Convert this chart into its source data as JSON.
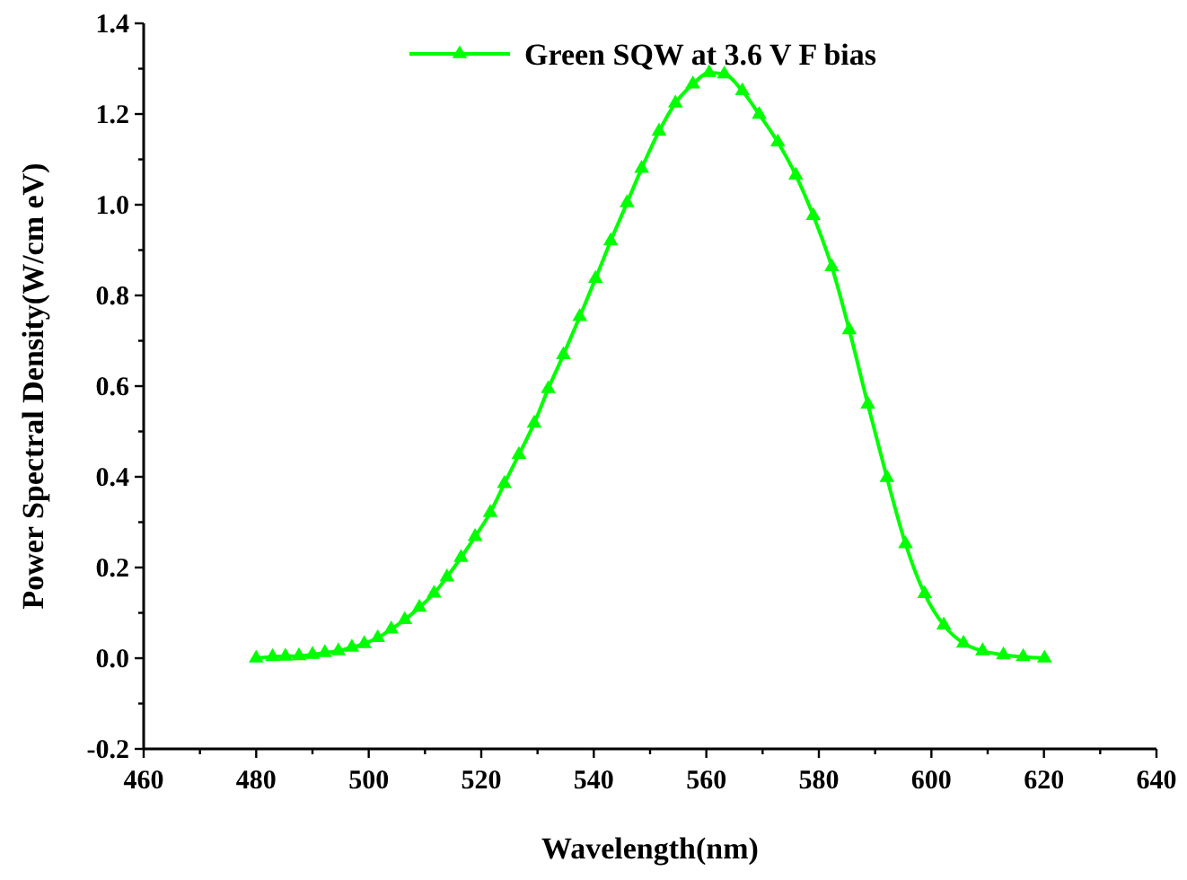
{
  "chart_data": {
    "type": "line",
    "xlabel": "Wavelength(nm)",
    "ylabel": "Power Spectral Density(W/cm eV)",
    "xlim": [
      460,
      640
    ],
    "ylim": [
      -0.2,
      1.4
    ],
    "xticks": [
      460,
      {
        "value": 470,
        "label": null
      },
      480,
      {
        "value": 490,
        "label": null
      },
      500,
      {
        "value": 510,
        "label": null
      },
      520,
      {
        "value": 530,
        "label": null
      },
      540,
      {
        "value": 550,
        "label": null
      },
      560,
      {
        "value": 570,
        "label": null
      },
      580,
      {
        "value": 590,
        "label": null
      },
      600,
      {
        "value": 610,
        "label": null
      },
      620,
      {
        "value": 630,
        "label": null
      },
      640
    ],
    "yticks": [
      {
        "value": -0.2,
        "label": "-0.2"
      },
      {
        "value": -0.1,
        "label": null
      },
      {
        "value": 0,
        "label": "0.0"
      },
      {
        "value": 0.1,
        "label": null
      },
      {
        "value": 0.2,
        "label": "0.2"
      },
      {
        "value": 0.3,
        "label": null
      },
      {
        "value": 0.4,
        "label": "0.4"
      },
      {
        "value": 0.5,
        "label": null
      },
      {
        "value": 0.6,
        "label": "0.6"
      },
      {
        "value": 0.7,
        "label": null
      },
      {
        "value": 0.8,
        "label": "0.8"
      },
      {
        "value": 0.9,
        "label": null
      },
      {
        "value": 1.0,
        "label": "1.0"
      },
      {
        "value": 1.1,
        "label": null
      },
      {
        "value": 1.2,
        "label": "1.2"
      },
      {
        "value": 1.3,
        "label": null
      },
      {
        "value": 1.4,
        "label": "1.4"
      }
    ],
    "grid": false,
    "legend": "top",
    "marker": "triangle",
    "line_style": "solid",
    "series": [
      {
        "name": "Green SQW at 3.6 V F bias",
        "color": "#00ff00",
        "x": [
          480.0,
          482.9,
          485.2,
          487.6,
          490.0,
          492.2,
          494.6,
          497.0,
          499.2,
          501.6,
          504.0,
          506.4,
          509.0,
          511.6,
          513.9,
          516.4,
          518.9,
          521.6,
          524.1,
          526.7,
          529.4,
          531.9,
          534.6,
          537.5,
          540.3,
          543.0,
          545.9,
          548.5,
          551.6,
          554.5,
          557.6,
          560.5,
          563.2,
          566.4,
          569.4,
          572.7,
          575.9,
          579.0,
          582.3,
          585.4,
          588.7,
          592.1,
          595.4,
          598.8,
          602.2,
          605.7,
          609.1,
          612.8,
          616.3,
          620.1
        ],
        "values": [
          0.0,
          0.003,
          0.004,
          0.005,
          0.008,
          0.012,
          0.016,
          0.024,
          0.032,
          0.045,
          0.064,
          0.085,
          0.112,
          0.143,
          0.179,
          0.222,
          0.268,
          0.321,
          0.385,
          0.449,
          0.518,
          0.594,
          0.669,
          0.753,
          0.837,
          0.92,
          1.004,
          1.08,
          1.162,
          1.224,
          1.266,
          1.291,
          1.288,
          1.251,
          1.199,
          1.138,
          1.065,
          0.976,
          0.863,
          0.724,
          0.56,
          0.398,
          0.252,
          0.142,
          0.073,
          0.033,
          0.016,
          0.007,
          0.003,
          0.0
        ]
      }
    ]
  }
}
